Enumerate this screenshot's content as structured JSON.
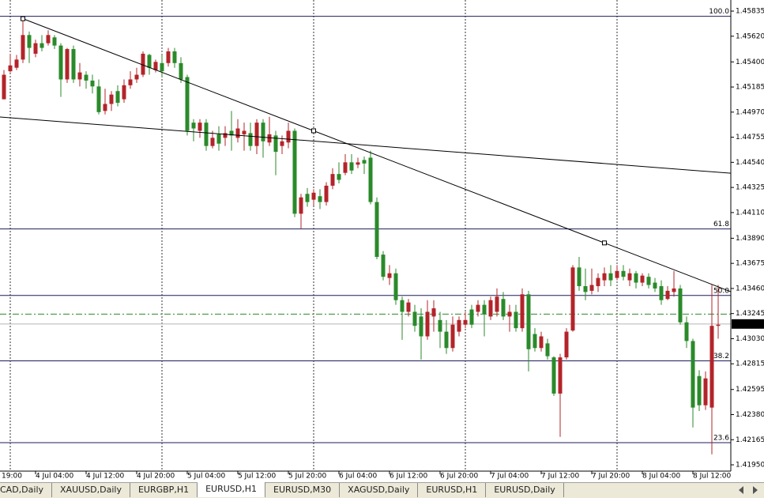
{
  "chart_data": {
    "type": "candlestick",
    "up_color": "#b3242a",
    "down_color": "#2a8a2a",
    "open": [
      1.4508,
      1.4532,
      1.4535,
      1.4542,
      1.4563,
      1.4547,
      1.4556,
      1.4556,
      1.4561,
      1.4554,
      1.4525,
      1.4551,
      1.4525,
      1.4529,
      1.4524,
      1.4519,
      1.4498,
      1.4504,
      1.4515,
      1.4508,
      1.452,
      1.4525,
      1.4529,
      1.4546,
      1.4533,
      1.4539,
      1.4539,
      1.4549,
      1.4539,
      1.4527,
      1.4488,
      1.4481,
      1.4488,
      1.4468,
      1.4478,
      1.4475,
      1.4481,
      1.4475,
      1.4478,
      1.4479,
      1.4468,
      1.4488,
      1.4471,
      1.4477,
      1.4468,
      1.4471,
      1.4481,
      1.441,
      1.4427,
      1.4422,
      1.4425,
      1.442,
      1.4434,
      1.4444,
      1.4445,
      1.4454,
      1.4452,
      1.4456,
      1.4458,
      1.442,
      1.4375,
      1.4355,
      1.4359,
      1.4336,
      1.4326,
      1.4326,
      1.4322,
      1.4305,
      1.4322,
      1.4319,
      1.4309,
      1.4295,
      1.4309,
      1.4315,
      1.4328,
      1.4326,
      1.4332,
      1.4322,
      1.4326,
      1.4337,
      1.4322,
      1.4326,
      1.4312,
      1.4341,
      1.4307,
      1.4295,
      1.4299,
      1.4287,
      1.4256,
      1.4287,
      1.431,
      1.4364,
      1.4348,
      1.4344,
      1.4348,
      1.4353,
      1.4359,
      1.4355,
      1.4361,
      1.4353,
      1.4359,
      1.4351,
      1.4356,
      1.4351,
      1.4348,
      1.4337,
      1.4343,
      1.4346,
      1.4317,
      1.4301,
      1.4271,
      1.4246,
      1.4244,
      1.4314
    ],
    "high": [
      1.4533,
      1.4547,
      1.4546,
      1.4577,
      1.4566,
      1.4559,
      1.4563,
      1.4567,
      1.4563,
      1.4556,
      1.4552,
      1.4554,
      1.4539,
      1.4532,
      1.4529,
      1.4525,
      1.4517,
      1.4515,
      1.452,
      1.4525,
      1.4532,
      1.4535,
      1.4549,
      1.4547,
      1.4542,
      1.4546,
      1.4552,
      1.4552,
      1.4544,
      1.4529,
      1.4491,
      1.4491,
      1.4491,
      1.4481,
      1.4485,
      1.4485,
      1.4498,
      1.4491,
      1.4488,
      1.4488,
      1.4491,
      1.4491,
      1.4493,
      1.4481,
      1.4477,
      1.4488,
      1.4483,
      1.4427,
      1.4432,
      1.4431,
      1.4431,
      1.4437,
      1.4449,
      1.4454,
      1.4461,
      1.4461,
      1.4458,
      1.4459,
      1.4464,
      1.4424,
      1.4378,
      1.4366,
      1.4363,
      1.4339,
      1.4337,
      1.4332,
      1.4329,
      1.4336,
      1.4336,
      1.4326,
      1.4319,
      1.4322,
      1.4322,
      1.4326,
      1.4332,
      1.4336,
      1.4336,
      1.4339,
      1.4346,
      1.4343,
      1.4332,
      1.4332,
      1.4346,
      1.4344,
      1.4312,
      1.4309,
      1.4303,
      1.4288,
      1.429,
      1.4312,
      1.4366,
      1.4373,
      1.4363,
      1.4363,
      1.4359,
      1.4364,
      1.4366,
      1.4366,
      1.4366,
      1.4363,
      1.4361,
      1.4359,
      1.4359,
      1.4355,
      1.4353,
      1.4348,
      1.4361,
      1.4349,
      1.4322,
      1.4303,
      1.4276,
      1.4275,
      1.4349,
      1.4349
    ],
    "low": [
      1.4508,
      1.4531,
      1.4533,
      1.4539,
      1.4539,
      1.4544,
      1.4549,
      1.4554,
      1.4551,
      1.451,
      1.4522,
      1.4522,
      1.4519,
      1.4517,
      1.4513,
      1.4495,
      1.4495,
      1.4498,
      1.4502,
      1.4505,
      1.4517,
      1.4522,
      1.4527,
      1.4529,
      1.4531,
      1.4527,
      1.4536,
      1.4535,
      1.4522,
      1.4477,
      1.4472,
      1.4475,
      1.4464,
      1.4466,
      1.4464,
      1.4468,
      1.4464,
      1.4471,
      1.4464,
      1.4464,
      1.4461,
      1.4458,
      1.4468,
      1.4443,
      1.4461,
      1.4466,
      1.4407,
      1.4397,
      1.4416,
      1.4417,
      1.4414,
      1.4417,
      1.4431,
      1.4436,
      1.4443,
      1.4444,
      1.4449,
      1.4444,
      1.4418,
      1.4371,
      1.4353,
      1.4349,
      1.4332,
      1.4302,
      1.4322,
      1.4309,
      1.4285,
      1.4302,
      1.4309,
      1.4295,
      1.429,
      1.4292,
      1.4305,
      1.4312,
      1.4312,
      1.4322,
      1.4305,
      1.4319,
      1.4322,
      1.4319,
      1.4309,
      1.4309,
      1.4309,
      1.4275,
      1.4292,
      1.4292,
      1.4285,
      1.4254,
      1.4219,
      1.4285,
      1.4309,
      1.4344,
      1.4336,
      1.4341,
      1.4343,
      1.4348,
      1.4348,
      1.4353,
      1.4353,
      1.4348,
      1.4346,
      1.4348,
      1.4346,
      1.4343,
      1.4332,
      1.4336,
      1.4339,
      1.4315,
      1.4295,
      1.4227,
      1.4241,
      1.4242,
      1.4204,
      1.4303
    ],
    "close": [
      1.4529,
      1.4537,
      1.4542,
      1.4563,
      1.4552,
      1.4556,
      1.4552,
      1.4563,
      1.4554,
      1.4525,
      1.4551,
      1.4525,
      1.4531,
      1.4524,
      1.4519,
      1.4497,
      1.4504,
      1.4512,
      1.4505,
      1.452,
      1.4525,
      1.4529,
      1.4547,
      1.4535,
      1.454,
      1.4532,
      1.4549,
      1.4539,
      1.4525,
      1.4481,
      1.4483,
      1.4488,
      1.4468,
      1.4475,
      1.447,
      1.4479,
      1.4477,
      1.4483,
      1.4481,
      1.4468,
      1.4488,
      1.4472,
      1.4478,
      1.4463,
      1.4472,
      1.4481,
      1.441,
      1.4424,
      1.442,
      1.4428,
      1.442,
      1.4434,
      1.4444,
      1.4439,
      1.4454,
      1.4447,
      1.4454,
      1.4453,
      1.442,
      1.4373,
      1.4356,
      1.4359,
      1.4336,
      1.4326,
      1.4334,
      1.4314,
      1.4305,
      1.4326,
      1.4329,
      1.4309,
      1.4295,
      1.4315,
      1.4319,
      1.4319,
      1.4315,
      1.4332,
      1.4324,
      1.4336,
      1.4339,
      1.4322,
      1.4326,
      1.4312,
      1.4341,
      1.4294,
      1.4295,
      1.4305,
      1.4288,
      1.4256,
      1.4287,
      1.4309,
      1.4364,
      1.4348,
      1.4343,
      1.4349,
      1.4355,
      1.4359,
      1.4353,
      1.4361,
      1.4356,
      1.4359,
      1.4351,
      1.4357,
      1.4349,
      1.4346,
      1.4336,
      1.4344,
      1.4346,
      1.4317,
      1.4301,
      1.4244,
      1.4246,
      1.4269,
      1.4314,
      1.4315
    ],
    "ylim": [
      1.41896,
      1.4593
    ],
    "yticks": [
      1.45835,
      {
        "value": 1.4562,
        "label": "1.45620"
      },
      {
        "value": 1.454,
        "label": "1.45400"
      },
      1.45185,
      {
        "value": 1.4497,
        "label": "1.44970"
      },
      1.44755,
      {
        "value": 1.4454,
        "label": "1.44540"
      },
      1.44325,
      {
        "value": 1.4411,
        "label": "1.44110"
      },
      {
        "value": 1.4389,
        "label": "1.43890"
      },
      1.43675,
      {
        "value": 1.4346,
        "label": "1.43460"
      },
      1.43245,
      {
        "value": 1.4303,
        "label": "1.43030"
      },
      1.42815,
      1.42595,
      {
        "value": 1.4238,
        "label": "1.42380"
      },
      1.42165,
      {
        "value": 1.4195,
        "label": "1.41950"
      }
    ],
    "xticks": [
      {
        "value": -4,
        "label": "19:00"
      },
      {
        "value": 5,
        "label": "4 Jul 04:00"
      },
      {
        "value": 13,
        "label": "4 Jul 12:00"
      },
      {
        "value": 21,
        "label": "4 Jul 20:00"
      },
      {
        "value": 29,
        "label": "5 Jul 04:00"
      },
      {
        "value": 37,
        "label": "5 Jul 12:00"
      },
      {
        "value": 45,
        "label": "5 Jul 20:00"
      },
      {
        "value": 53,
        "label": "6 Jul 04:00"
      },
      {
        "value": 61,
        "label": "6 Jul 12:00"
      },
      {
        "value": 69,
        "label": "6 Jul 20:00"
      },
      {
        "value": 77,
        "label": "7 Jul 04:00"
      },
      {
        "value": 85,
        "label": "7 Jul 12:00"
      },
      {
        "value": 93,
        "label": "7 Jul 20:00"
      },
      {
        "value": 101,
        "label": "8 Jul 04:00"
      },
      {
        "value": 109,
        "label": "8 Jul 12:00"
      }
    ],
    "xgrid": [
      1,
      25,
      49,
      73,
      97
    ],
    "fib": [
      {
        "label": "100.0",
        "value": 1.4579
      },
      {
        "label": "61.8",
        "value": 1.4397
      },
      {
        "label": "50.0",
        "value": 1.434
      },
      {
        "label": "38.2",
        "value": 1.4284
      },
      {
        "label": "23.6",
        "value": 1.4214
      }
    ],
    "fib_color": "#1c1c5c",
    "current_price": 1.43156,
    "level_line": 1.4324,
    "level_color": "#2a8a2a",
    "trendlines": [
      {
        "x": [
          3,
          95
        ],
        "y": [
          1.4577,
          1.4385
        ],
        "selected": true
      },
      {
        "x": [
          -1,
          119
        ],
        "y": [
          1.4493,
          1.4443
        ],
        "selected": false
      }
    ],
    "tabs": [
      "CAD,Daily",
      "XAUUSD,Daily",
      "EURGBP,H1",
      "EURUSD,H1",
      "EURUSD,M30",
      "XAGUSD,Daily",
      "EURUSD,H1",
      "EURUSD,Daily"
    ],
    "active_tab": 3
  }
}
